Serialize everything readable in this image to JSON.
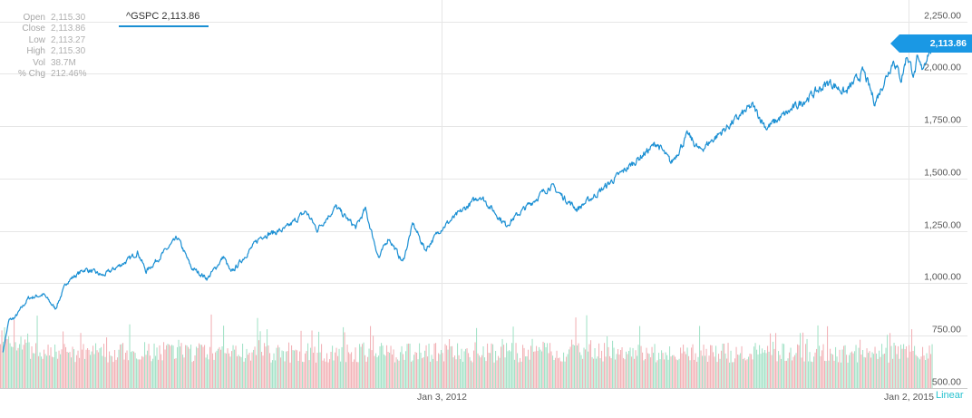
{
  "stats": [
    {
      "label": "Open",
      "value": "2,115.30"
    },
    {
      "label": "Close",
      "value": "2,113.86"
    },
    {
      "label": "Low",
      "value": "2,113.27"
    },
    {
      "label": "High",
      "value": "2,115.30"
    },
    {
      "label": "Vol",
      "value": "38.7M"
    },
    {
      "label": "% Chg",
      "value": "212.46%"
    }
  ],
  "legend": {
    "label": "^GSPC 2,113.86"
  },
  "price_badge": "2,113.86",
  "scale_mode": "Linear",
  "colors": {
    "line": "#1a8fd3",
    "badge": "#1a98e4",
    "volume_up": "#a6e3c9",
    "volume_down": "#f2b3b8",
    "grid": "#e6e6e6"
  },
  "chart_data": {
    "type": "line",
    "series": [
      {
        "name": "^GSPC",
        "points": [
          [
            "2009-03-09",
            676.53
          ],
          [
            "2009-03-23",
            822.92
          ],
          [
            "2009-04-06",
            835.48
          ],
          [
            "2009-05-08",
            929.23
          ],
          [
            "2009-06-12",
            946.21
          ],
          [
            "2009-07-10",
            879.13
          ],
          [
            "2009-08-07",
            1010.48
          ],
          [
            "2009-09-18",
            1068.3
          ],
          [
            "2009-10-30",
            1036.19
          ],
          [
            "2009-12-31",
            1115.1
          ],
          [
            "2010-01-19",
            1150.23
          ],
          [
            "2010-02-08",
            1056.74
          ],
          [
            "2010-04-23",
            1217.28
          ],
          [
            "2010-05-25",
            1074.03
          ],
          [
            "2010-07-02",
            1022.58
          ],
          [
            "2010-08-09",
            1127.79
          ],
          [
            "2010-08-26",
            1047.22
          ],
          [
            "2010-11-05",
            1225.85
          ],
          [
            "2010-12-31",
            1257.64
          ],
          [
            "2011-02-18",
            1343.01
          ],
          [
            "2011-03-16",
            1256.88
          ],
          [
            "2011-04-29",
            1363.61
          ],
          [
            "2011-06-15",
            1265.42
          ],
          [
            "2011-07-07",
            1353.22
          ],
          [
            "2011-08-08",
            1119.46
          ],
          [
            "2011-08-31",
            1218.89
          ],
          [
            "2011-10-03",
            1099.23
          ],
          [
            "2011-10-27",
            1284.59
          ],
          [
            "2011-11-25",
            1158.67
          ],
          [
            "2011-12-30",
            1257.6
          ],
          [
            "2012-04-02",
            1419.04
          ],
          [
            "2012-06-01",
            1278.04
          ],
          [
            "2012-09-14",
            1465.77
          ],
          [
            "2012-11-15",
            1353.33
          ],
          [
            "2012-12-31",
            1426.19
          ],
          [
            "2013-05-21",
            1669.16
          ],
          [
            "2013-06-24",
            1573.09
          ],
          [
            "2013-08-02",
            1709.67
          ],
          [
            "2013-08-30",
            1632.97
          ],
          [
            "2013-12-31",
            1848.36
          ],
          [
            "2014-02-03",
            1741.89
          ],
          [
            "2014-06-30",
            1960.23
          ],
          [
            "2014-08-07",
            1909.57
          ],
          [
            "2014-09-18",
            2011.36
          ],
          [
            "2014-10-15",
            1862.49
          ],
          [
            "2014-11-28",
            2067.56
          ],
          [
            "2014-12-16",
            1972.74
          ],
          [
            "2014-12-29",
            2090.57
          ],
          [
            "2015-01-15",
            1992.67
          ],
          [
            "2015-01-22",
            2063.15
          ],
          [
            "2015-02-02",
            2020.85
          ],
          [
            "2015-02-17",
            2100.34
          ],
          [
            "2015-02-24",
            2115.48
          ],
          [
            "2015-02-27",
            2113.86
          ]
        ]
      }
    ],
    "x_ticks": [
      {
        "date": "2012-01-03",
        "label": "Jan 3, 2012"
      },
      {
        "date": "2015-01-02",
        "label": "Jan 2, 2015"
      }
    ],
    "x_range": [
      "2009-03-02",
      "2015-03-13"
    ],
    "y_ticks": [
      "2,250.00",
      "2,000.00",
      "1,750.00",
      "1,500.00",
      "1,250.00",
      "1,000.00",
      "750.00",
      "500.00"
    ],
    "y_tick_values": [
      2250,
      2000,
      1750,
      1500,
      1250,
      1000,
      750,
      500
    ],
    "ylim": [
      500,
      2300
    ],
    "grid": true,
    "volume": {
      "shown": true,
      "colors": [
        "up-green",
        "down-red"
      ]
    }
  }
}
